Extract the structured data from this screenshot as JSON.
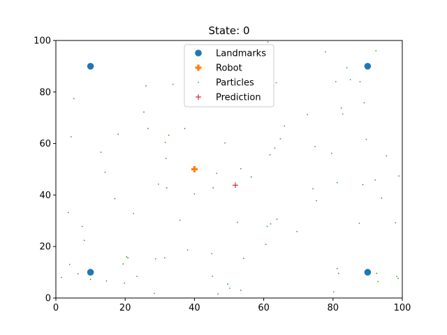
{
  "chart_data": {
    "type": "scatter",
    "title": "State: 0",
    "xlabel": "",
    "ylabel": "",
    "xlim": [
      0,
      100
    ],
    "ylim": [
      0,
      100
    ],
    "xticks": [
      "0",
      "20",
      "40",
      "60",
      "80",
      "100"
    ],
    "yticks": [
      "0",
      "20",
      "40",
      "60",
      "80",
      "100"
    ],
    "grid": false,
    "legend_position": "top-center",
    "series": [
      {
        "name": "Landmarks",
        "marker": "circle",
        "color": "#1f77b4",
        "points": [
          [
            10,
            90
          ],
          [
            90,
            90
          ],
          [
            10,
            10
          ],
          [
            90,
            10
          ]
        ]
      },
      {
        "name": "Robot",
        "marker": "plus-bold",
        "color": "#ff7f0e",
        "points": [
          [
            40,
            50
          ]
        ]
      },
      {
        "name": "Particles",
        "marker": "dot",
        "color": "#2ca02c",
        "points": [
          [
            1.6,
            8
          ],
          [
            3.6,
            33.2
          ],
          [
            4.0,
            13
          ],
          [
            4.4,
            62.6
          ],
          [
            5.2,
            77.4
          ],
          [
            6.4,
            9.4
          ],
          [
            7.6,
            27.8
          ],
          [
            8.2,
            22.4
          ],
          [
            10,
            7.2
          ],
          [
            10.6,
            10.0
          ],
          [
            13.0,
            56.6
          ],
          [
            14.2,
            48.8
          ],
          [
            14.6,
            6.6
          ],
          [
            17.0,
            38.6
          ],
          [
            18.0,
            63.6
          ],
          [
            19.4,
            13.2
          ],
          [
            19.8,
            5.8
          ],
          [
            20.4,
            16.0
          ],
          [
            20.8,
            15.6
          ],
          [
            22.4,
            32.8
          ],
          [
            23.4,
            8.4
          ],
          [
            25.4,
            72.2
          ],
          [
            26.0,
            82.4
          ],
          [
            26.6,
            65.8
          ],
          [
            28.4,
            1.8
          ],
          [
            28.8,
            15.2
          ],
          [
            29.6,
            44.2
          ],
          [
            31.4,
            15.6
          ],
          [
            31.6,
            60.4
          ],
          [
            31.8,
            54.2
          ],
          [
            32.0,
            42.8
          ],
          [
            32.6,
            63.2
          ],
          [
            33.8,
            83.0
          ],
          [
            35.8,
            30.2
          ],
          [
            37.2,
            65.8
          ],
          [
            38.0,
            18.6
          ],
          [
            40.0,
            40.4
          ],
          [
            45.0,
            17.2
          ],
          [
            45.2,
            8.4
          ],
          [
            45.4,
            42.8
          ],
          [
            46.4,
            48.4
          ],
          [
            46.8,
            1.6
          ],
          [
            48.8,
            60.2
          ],
          [
            49.6,
            5.4
          ],
          [
            50.2,
            3.8
          ],
          [
            52.4,
            29.4
          ],
          [
            53.4,
            50.2
          ],
          [
            53.4,
            3.0
          ],
          [
            54.2,
            15.4
          ],
          [
            56.4,
            47.0
          ],
          [
            58.8,
            74.4
          ],
          [
            60.6,
            20.8
          ],
          [
            61.0,
            27.8
          ],
          [
            61.2,
            99.4
          ],
          [
            61.8,
            55.6
          ],
          [
            62.0,
            28.8
          ],
          [
            63.2,
            58.2
          ],
          [
            63.6,
            83.6
          ],
          [
            63.8,
            30.6
          ],
          [
            64.8,
            61.8
          ],
          [
            66.0,
            66.8
          ],
          [
            69.6,
            25.8
          ],
          [
            72.6,
            71.2
          ],
          [
            74.2,
            42.4
          ],
          [
            74.8,
            58.8
          ],
          [
            75.2,
            37.8
          ],
          [
            77.8,
            95.6
          ],
          [
            79.6,
            56.2
          ],
          [
            80.2,
            2.4
          ],
          [
            80.8,
            84.0
          ],
          [
            81.2,
            44.8
          ],
          [
            81.2,
            11.4
          ],
          [
            81.6,
            9.6
          ],
          [
            82.4,
            73.8
          ],
          [
            82.8,
            71.4
          ],
          [
            84.0,
            89.4
          ],
          [
            85.0,
            84.8
          ],
          [
            87.6,
            29.0
          ],
          [
            87.8,
            84.0
          ],
          [
            88.6,
            44.0
          ],
          [
            89.0,
            75.8
          ],
          [
            89.6,
            61.6
          ],
          [
            92.2,
            45.8
          ],
          [
            92.4,
            96.0
          ],
          [
            92.6,
            9.6
          ],
          [
            93.0,
            6.4
          ],
          [
            94.0,
            38.8
          ],
          [
            95.4,
            55.2
          ],
          [
            98.0,
            29.2
          ],
          [
            98.4,
            8.4
          ],
          [
            98.8,
            7.6
          ],
          [
            99.0,
            47.4
          ]
        ]
      },
      {
        "name": "Prediction",
        "marker": "plus-thin",
        "color": "#d62728",
        "points": [
          [
            51.8,
            43.8
          ]
        ]
      }
    ]
  }
}
